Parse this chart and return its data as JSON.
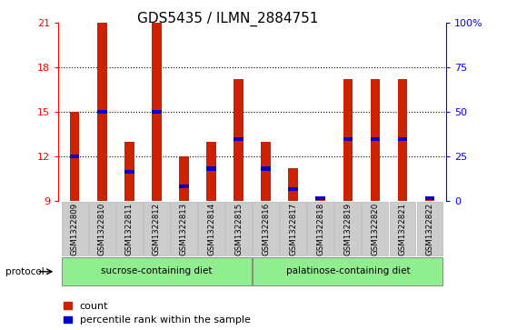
{
  "title": "GDS5435 / ILMN_2884751",
  "samples": [
    "GSM1322809",
    "GSM1322810",
    "GSM1322811",
    "GSM1322812",
    "GSM1322813",
    "GSM1322814",
    "GSM1322815",
    "GSM1322816",
    "GSM1322817",
    "GSM1322818",
    "GSM1322819",
    "GSM1322820",
    "GSM1322821",
    "GSM1322822"
  ],
  "bar_heights": [
    15.0,
    21.0,
    13.0,
    21.0,
    12.0,
    13.0,
    17.2,
    13.0,
    11.2,
    9.2,
    17.2,
    17.2,
    17.2,
    9.2
  ],
  "blue_marks": [
    12.0,
    15.0,
    11.0,
    15.0,
    10.0,
    11.2,
    13.2,
    11.2,
    9.8,
    9.2,
    13.2,
    13.2,
    13.2,
    9.2
  ],
  "bar_color": "#cc2200",
  "blue_color": "#0000cc",
  "ymin": 9,
  "ymax": 21,
  "yticks": [
    9,
    12,
    15,
    18,
    21
  ],
  "ytick_labels": [
    "9",
    "12",
    "15",
    "18",
    "21"
  ],
  "right_yticks": [
    0,
    25,
    50,
    75,
    100
  ],
  "right_ytick_labels": [
    "0",
    "25",
    "50",
    "75",
    "100%"
  ],
  "grid_yticks": [
    12,
    15,
    18
  ],
  "bar_width": 0.35,
  "sucrose_label": "sucrose-containing diet",
  "palatinose_label": "palatinose-containing diet",
  "protocol_label": "protocol",
  "group_color": "#90ee90",
  "tick_fontsize": 8,
  "legend_fontsize": 8,
  "title_fontsize": 11
}
